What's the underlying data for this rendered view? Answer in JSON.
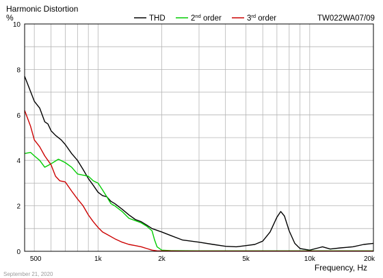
{
  "chart_data": {
    "type": "line",
    "title": "Harmonic Distortion",
    "model": "TW022WA07/09",
    "ylabel": "%",
    "xlabel": "Frequency, Hz",
    "date": "September 21, 2020",
    "xscale": "log",
    "xlim": [
      450,
      20000
    ],
    "ylim": [
      0,
      10
    ],
    "grid": true,
    "legend": "top",
    "ytick_labels": [
      "0",
      "2",
      "4",
      "6",
      "8",
      "10"
    ],
    "xtick_labels": [
      "500",
      "1k",
      "2k",
      "5k",
      "10k",
      "20k"
    ],
    "series": [
      {
        "name": "THD",
        "color": "#000000",
        "label_main": "THD",
        "label_sup": "",
        "label_rest": "",
        "points": [
          [
            450,
            7.7
          ],
          [
            470,
            7.25
          ],
          [
            500,
            6.6
          ],
          [
            530,
            6.3
          ],
          [
            560,
            5.7
          ],
          [
            580,
            5.6
          ],
          [
            600,
            5.3
          ],
          [
            630,
            5.1
          ],
          [
            670,
            4.9
          ],
          [
            700,
            4.7
          ],
          [
            750,
            4.3
          ],
          [
            800,
            4.0
          ],
          [
            850,
            3.6
          ],
          [
            900,
            3.2
          ],
          [
            950,
            2.9
          ],
          [
            1000,
            2.6
          ],
          [
            1050,
            2.45
          ],
          [
            1100,
            2.4
          ],
          [
            1150,
            2.2
          ],
          [
            1200,
            2.1
          ],
          [
            1300,
            1.85
          ],
          [
            1400,
            1.6
          ],
          [
            1500,
            1.4
          ],
          [
            1600,
            1.3
          ],
          [
            1700,
            1.15
          ],
          [
            1800,
            1.0
          ],
          [
            2000,
            0.85
          ],
          [
            2200,
            0.7
          ],
          [
            2500,
            0.5
          ],
          [
            3000,
            0.4
          ],
          [
            3500,
            0.3
          ],
          [
            4000,
            0.22
          ],
          [
            4500,
            0.2
          ],
          [
            5000,
            0.25
          ],
          [
            5500,
            0.3
          ],
          [
            6000,
            0.45
          ],
          [
            6500,
            0.85
          ],
          [
            7000,
            1.5
          ],
          [
            7300,
            1.75
          ],
          [
            7600,
            1.55
          ],
          [
            8000,
            0.9
          ],
          [
            8500,
            0.35
          ],
          [
            9000,
            0.12
          ],
          [
            10000,
            0.05
          ],
          [
            11000,
            0.15
          ],
          [
            11500,
            0.2
          ],
          [
            12500,
            0.1
          ],
          [
            14000,
            0.15
          ],
          [
            16000,
            0.2
          ],
          [
            18000,
            0.3
          ],
          [
            20000,
            0.35
          ]
        ]
      },
      {
        "name": "2nd order",
        "color": "#00cc00",
        "label_main": "2",
        "label_sup": "nd",
        "label_rest": " order",
        "points": [
          [
            450,
            4.3
          ],
          [
            480,
            4.35
          ],
          [
            500,
            4.2
          ],
          [
            530,
            4.0
          ],
          [
            560,
            3.7
          ],
          [
            600,
            3.85
          ],
          [
            650,
            4.05
          ],
          [
            700,
            3.9
          ],
          [
            750,
            3.7
          ],
          [
            800,
            3.4
          ],
          [
            850,
            3.35
          ],
          [
            900,
            3.3
          ],
          [
            950,
            3.1
          ],
          [
            1000,
            3.0
          ],
          [
            1050,
            2.7
          ],
          [
            1100,
            2.4
          ],
          [
            1150,
            2.1
          ],
          [
            1200,
            2.0
          ],
          [
            1300,
            1.75
          ],
          [
            1400,
            1.45
          ],
          [
            1500,
            1.35
          ],
          [
            1600,
            1.25
          ],
          [
            1700,
            1.1
          ],
          [
            1800,
            0.9
          ],
          [
            1850,
            0.5
          ],
          [
            1900,
            0.2
          ],
          [
            2000,
            0.05
          ],
          [
            2200,
            0.03
          ],
          [
            3000,
            0.02
          ],
          [
            5000,
            0.02
          ],
          [
            10000,
            0.02
          ],
          [
            20000,
            0.02
          ]
        ]
      },
      {
        "name": "3rd order",
        "color": "#cc0000",
        "label_main": "3",
        "label_sup": "rd",
        "label_rest": " order",
        "points": [
          [
            450,
            6.2
          ],
          [
            480,
            5.5
          ],
          [
            500,
            4.9
          ],
          [
            530,
            4.6
          ],
          [
            560,
            4.2
          ],
          [
            600,
            3.8
          ],
          [
            630,
            3.3
          ],
          [
            660,
            3.1
          ],
          [
            700,
            3.05
          ],
          [
            750,
            2.65
          ],
          [
            800,
            2.3
          ],
          [
            850,
            2.0
          ],
          [
            900,
            1.6
          ],
          [
            950,
            1.3
          ],
          [
            1000,
            1.05
          ],
          [
            1050,
            0.85
          ],
          [
            1100,
            0.75
          ],
          [
            1200,
            0.55
          ],
          [
            1300,
            0.4
          ],
          [
            1400,
            0.3
          ],
          [
            1500,
            0.25
          ],
          [
            1600,
            0.2
          ],
          [
            1700,
            0.12
          ],
          [
            1800,
            0.05
          ],
          [
            1900,
            0.02
          ],
          [
            2500,
            0.01
          ],
          [
            5000,
            0.01
          ],
          [
            10000,
            0.01
          ],
          [
            20000,
            0.01
          ]
        ]
      }
    ]
  }
}
